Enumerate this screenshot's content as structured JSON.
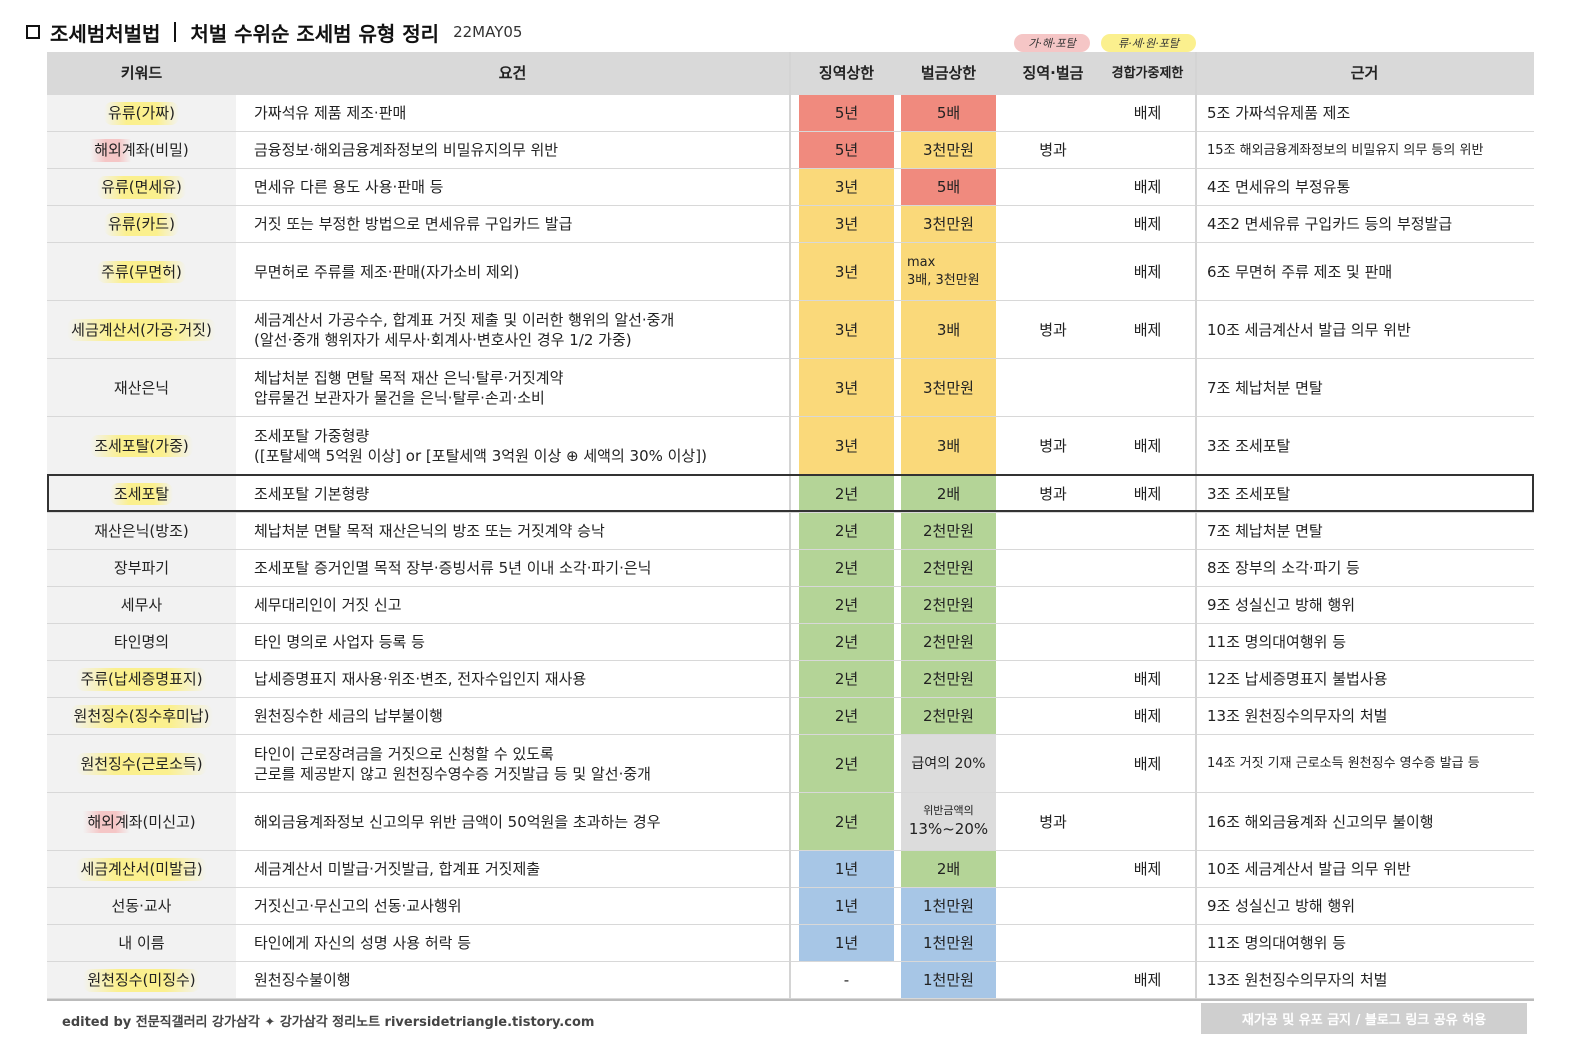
{
  "header": {
    "title": "조세범처벌법",
    "subtitle": "처벌 수위순 조세범 유형 정리",
    "date": "22MAY05"
  },
  "legends": {
    "pink_label": "가·해·포탈",
    "yellow_label": "류·세·원·포탈",
    "pink_color": "#f5c6c6",
    "yellow_color": "#fbf08e"
  },
  "columns": {
    "keyword": "키워드",
    "requirement": "요건",
    "prison": "징역상한",
    "fine": "벌금상한",
    "both": "징역·벌금",
    "aggravation": "경합가중제한",
    "basis": "근거"
  },
  "colors": {
    "red": "#f08a7e",
    "yellow": "#fad97a",
    "green": "#b4d497",
    "blue": "#a7c6e6",
    "gray": "#dcdcdc"
  },
  "rows": [
    {
      "keyword": "유류(가짜)",
      "req1": "가짜석유 제품 제조·판매",
      "req2": "",
      "prison": "5년",
      "pc": "red",
      "fine": "5배",
      "fine2": "",
      "fc": "red",
      "both": "",
      "agg": "배제",
      "basis": "5조 가짜석유제품 제조"
    },
    {
      "keyword": "해외계좌(비밀)",
      "req1": "금융정보·해외금융계좌정보의 비밀유지의무 위반",
      "req2": "",
      "prison": "5년",
      "pc": "red",
      "fine": "3천만원",
      "fine2": "",
      "fc": "yellow",
      "both": "병과",
      "agg": "",
      "basis": "15조 해외금융계좌정보의 비밀유지 의무 등의 위반"
    },
    {
      "keyword": "유류(면세유)",
      "req1": "면세유 다른 용도 사용·판매 등",
      "req2": "",
      "prison": "3년",
      "pc": "yellow",
      "fine": "5배",
      "fine2": "",
      "fc": "red",
      "both": "",
      "agg": "배제",
      "basis": "4조 면세유의 부정유통"
    },
    {
      "keyword": "유류(카드)",
      "req1": "거짓 또는 부정한 방법으로 면세유류 구입카드 발급",
      "req2": "",
      "prison": "3년",
      "pc": "yellow",
      "fine": "3천만원",
      "fine2": "",
      "fc": "yellow",
      "both": "",
      "agg": "배제",
      "basis": "4조2 면세유류 구입카드 등의 부정발급"
    },
    {
      "keyword": "주류(무면허)",
      "req1": "무면허로 주류를 제조·판매(자가소비 제외)",
      "req2": "",
      "prison": "3년",
      "pc": "yellow",
      "fine": "max",
      "fine2": "3배, 3천만원",
      "fc": "yellow",
      "both": "",
      "agg": "배제",
      "basis": "6조 무면허 주류 제조 및 판매"
    },
    {
      "keyword": "세금계산서(가공·거짓)",
      "req1": "세금계산서 가공수수, 합계표 거짓 제출 및 이러한 행위의 알선·중개",
      "req2": "(알선·중개 행위자가 세무사·회계사·변호사인 경우 1/2 가중)",
      "prison": "3년",
      "pc": "yellow",
      "fine": "3배",
      "fine2": "",
      "fc": "yellow",
      "both": "병과",
      "agg": "배제",
      "basis": "10조 세금계산서 발급 의무 위반"
    },
    {
      "keyword": "재산은닉",
      "req1": "체납처분 집행 면탈 목적 재산 은닉·탈루·거짓계약",
      "req2": "압류물건 보관자가 물건을 은닉·탈루·손괴·소비",
      "prison": "3년",
      "pc": "yellow",
      "fine": "3천만원",
      "fine2": "",
      "fc": "yellow",
      "both": "",
      "agg": "",
      "basis": "7조 체납처분 면탈"
    },
    {
      "keyword": "조세포탈(가중)",
      "req1": "조세포탈 가중형량",
      "req2": "([포탈세액 5억원 이상] or [포탈세액 3억원 이상 ⊕ 세액의 30% 이상])",
      "prison": "3년",
      "pc": "yellow",
      "fine": "3배",
      "fine2": "",
      "fc": "yellow",
      "both": "병과",
      "agg": "배제",
      "basis": "3조 조세포탈"
    },
    {
      "keyword": "조세포탈",
      "req1": "조세포탈 기본형량",
      "req2": "",
      "prison": "2년",
      "pc": "green",
      "fine": "2배",
      "fine2": "",
      "fc": "green",
      "both": "병과",
      "agg": "배제",
      "basis": "3조 조세포탈"
    },
    {
      "keyword": "재산은닉(방조)",
      "req1": "체납처분 면탈 목적 재산은닉의 방조 또는 거짓계약 승낙",
      "req2": "",
      "prison": "2년",
      "pc": "green",
      "fine": "2천만원",
      "fine2": "",
      "fc": "green",
      "both": "",
      "agg": "",
      "basis": "7조 체납처분 면탈"
    },
    {
      "keyword": "장부파기",
      "req1": "조세포탈 증거인멸 목적 장부·증빙서류 5년 이내 소각·파기·은닉",
      "req2": "",
      "prison": "2년",
      "pc": "green",
      "fine": "2천만원",
      "fine2": "",
      "fc": "green",
      "both": "",
      "agg": "",
      "basis": "8조 장부의 소각·파기 등"
    },
    {
      "keyword": "세무사",
      "req1": "세무대리인이 거짓 신고",
      "req2": "",
      "prison": "2년",
      "pc": "green",
      "fine": "2천만원",
      "fine2": "",
      "fc": "green",
      "both": "",
      "agg": "",
      "basis": "9조 성실신고 방해 행위"
    },
    {
      "keyword": "타인명의",
      "req1": "타인 명의로 사업자 등록 등",
      "req2": "",
      "prison": "2년",
      "pc": "green",
      "fine": "2천만원",
      "fine2": "",
      "fc": "green",
      "both": "",
      "agg": "",
      "basis": "11조 명의대여행위 등"
    },
    {
      "keyword": "주류(납세증명표지)",
      "req1": "납세증명표지 재사용·위조·변조, 전자수입인지 재사용",
      "req2": "",
      "prison": "2년",
      "pc": "green",
      "fine": "2천만원",
      "fine2": "",
      "fc": "green",
      "both": "",
      "agg": "배제",
      "basis": "12조 납세증명표지 불법사용"
    },
    {
      "keyword": "원천징수(징수후미납)",
      "req1": "원천징수한 세금의 납부불이행",
      "req2": "",
      "prison": "2년",
      "pc": "green",
      "fine": "2천만원",
      "fine2": "",
      "fc": "green",
      "both": "",
      "agg": "배제",
      "basis": "13조 원천징수의무자의 처벌"
    },
    {
      "keyword": "원천징수(근로소득)",
      "req1": "타인이 근로장려금을 거짓으로 신청할 수 있도록",
      "req2": "근로를 제공받지 않고 원천징수영수증 거짓발급 등 및 알선·중개",
      "prison": "2년",
      "pc": "green",
      "fine": "급여의 20%",
      "fine2": "",
      "fc": "gray",
      "both": "",
      "agg": "배제",
      "basis": "14조 거짓 기재 근로소득 원천징수 영수증 발급 등"
    },
    {
      "keyword": "해외계좌(미신고)",
      "req1": "해외금융계좌정보 신고의무 위반 금액이 50억원을 초과하는 경우",
      "req2": "",
      "prison": "2년",
      "pc": "green",
      "fine": "위반금액의",
      "fine2": "13%~20%",
      "fc": "gray",
      "both": "병과",
      "agg": "",
      "basis": "16조 해외금융계좌 신고의무 불이행"
    },
    {
      "keyword": "세금계산서(미발급)",
      "req1": "세금계산서 미발급·거짓발급, 합계표 거짓제출",
      "req2": "",
      "prison": "1년",
      "pc": "blue",
      "fine": "2배",
      "fine2": "",
      "fc": "green",
      "both": "",
      "agg": "배제",
      "basis": "10조 세금계산서 발급 의무 위반"
    },
    {
      "keyword": "선동·교사",
      "req1": "거짓신고·무신고의 선동·교사행위",
      "req2": "",
      "prison": "1년",
      "pc": "blue",
      "fine": "1천만원",
      "fine2": "",
      "fc": "blue",
      "both": "",
      "agg": "",
      "basis": "9조 성실신고 방해 행위"
    },
    {
      "keyword": "내 이름",
      "req1": "타인에게 자신의 성명 사용 허락 등",
      "req2": "",
      "prison": "1년",
      "pc": "blue",
      "fine": "1천만원",
      "fine2": "",
      "fc": "blue",
      "both": "",
      "agg": "",
      "basis": "11조 명의대여행위 등"
    },
    {
      "keyword": "원천징수(미징수)",
      "req1": "원천징수불이행",
      "req2": "",
      "prison": "-",
      "pc": "none",
      "fine": "1천만원",
      "fine2": "",
      "fc": "blue",
      "both": "",
      "agg": "배제",
      "basis": "13조 원천징수의무자의 처벌"
    }
  ],
  "footer": {
    "left": "edited by 전문직갤러리 강가삼각  ✦  강가삼각 정리노트 riversidetriangle.tistory.com",
    "right": "재가공 및 유포 금지 / 블로그 링크 공유 허용"
  }
}
